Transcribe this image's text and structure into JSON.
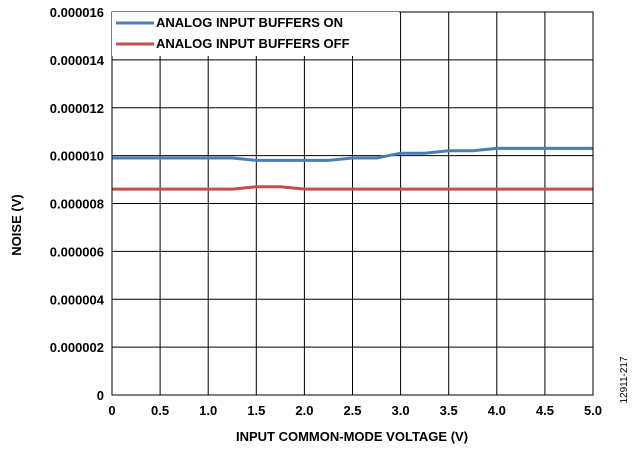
{
  "figure_id": "12911-217",
  "chart_data": {
    "type": "line",
    "xlabel": "INPUT COMMON-MODE VOLTAGE (V)",
    "ylabel": "NOISE (V)",
    "xlim": [
      0,
      5.0
    ],
    "ylim": [
      0,
      1.6e-05
    ],
    "x_ticks": [
      0,
      0.5,
      1.0,
      1.5,
      2.0,
      2.5,
      3.0,
      3.5,
      4.0,
      4.5,
      5.0
    ],
    "x_tick_labels": [
      "0",
      "0.5",
      "1.0",
      "1.5",
      "2.0",
      "2.5",
      "3.0",
      "3.5",
      "4.0",
      "4.5",
      "5.0"
    ],
    "y_ticks": [
      0,
      2e-06,
      4e-06,
      6e-06,
      8e-06,
      1e-05,
      1.2e-05,
      1.4e-05,
      1.6e-05
    ],
    "y_tick_labels": [
      "0",
      "0.000002",
      "0.000004",
      "0.000006",
      "0.000008",
      "0.000010",
      "0.000012",
      "0.000014",
      "0.000016"
    ],
    "grid": true,
    "legend_position": "top-left",
    "series": [
      {
        "name": "ANALOG INPUT BUFFERS ON",
        "color": "#4a7ebb",
        "x": [
          0,
          0.25,
          0.5,
          0.75,
          1.0,
          1.25,
          1.5,
          1.75,
          2.0,
          2.25,
          2.5,
          2.75,
          3.0,
          3.25,
          3.5,
          3.75,
          4.0,
          4.25,
          4.5,
          4.75,
          5.0
        ],
        "y": [
          9.9e-06,
          9.9e-06,
          9.9e-06,
          9.9e-06,
          9.9e-06,
          9.9e-06,
          9.8e-06,
          9.8e-06,
          9.8e-06,
          9.8e-06,
          9.9e-06,
          9.9e-06,
          1.01e-05,
          1.01e-05,
          1.02e-05,
          1.02e-05,
          1.03e-05,
          1.03e-05,
          1.03e-05,
          1.03e-05,
          1.03e-05
        ]
      },
      {
        "name": "ANALOG INPUT BUFFERS OFF",
        "color": "#c0504d",
        "x": [
          0,
          0.25,
          0.5,
          0.75,
          1.0,
          1.25,
          1.5,
          1.75,
          2.0,
          2.25,
          2.5,
          2.75,
          3.0,
          3.25,
          3.5,
          3.75,
          4.0,
          4.25,
          4.5,
          4.75,
          5.0
        ],
        "y": [
          8.6e-06,
          8.6e-06,
          8.6e-06,
          8.6e-06,
          8.6e-06,
          8.6e-06,
          8.7e-06,
          8.7e-06,
          8.6e-06,
          8.6e-06,
          8.6e-06,
          8.6e-06,
          8.6e-06,
          8.6e-06,
          8.6e-06,
          8.6e-06,
          8.6e-06,
          8.6e-06,
          8.6e-06,
          8.6e-06,
          8.6e-06
        ]
      }
    ]
  }
}
